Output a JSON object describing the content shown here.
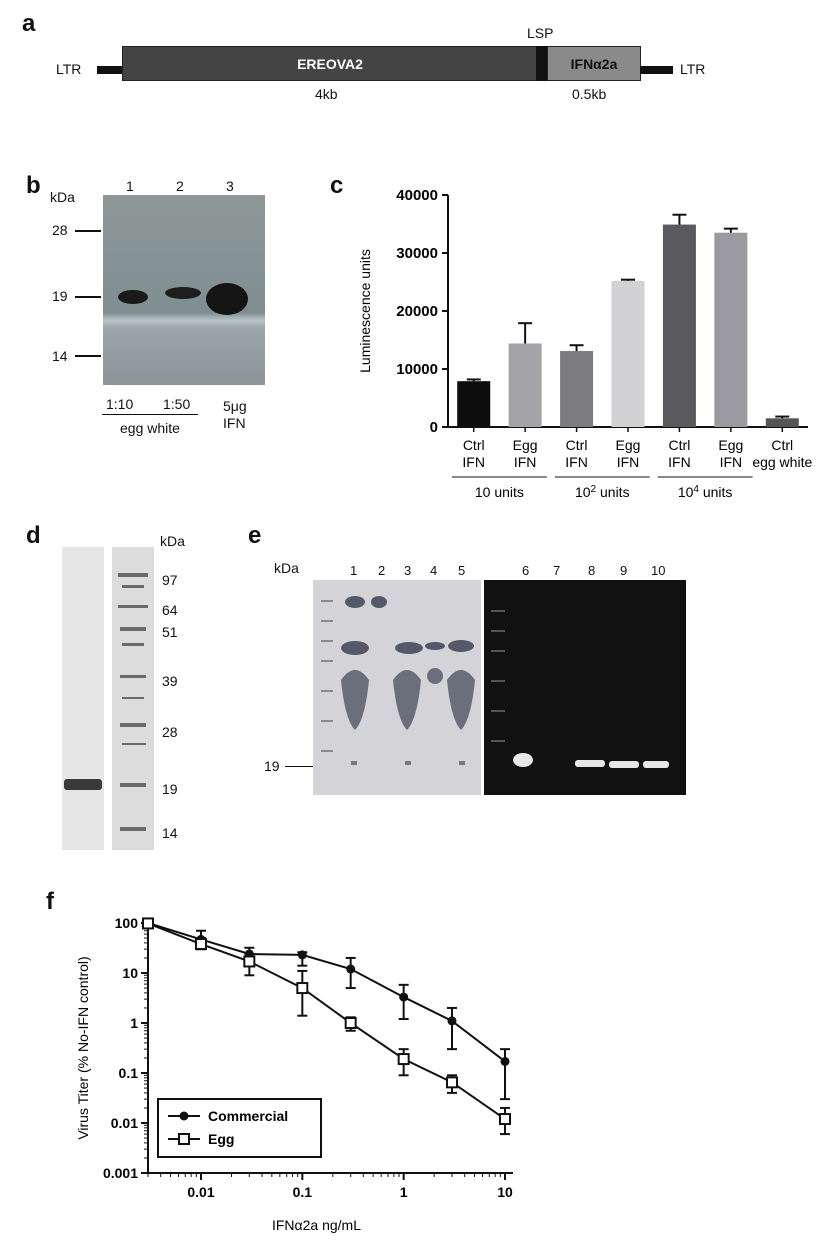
{
  "panels": {
    "a": {
      "label": "a",
      "ltr_left": "LTR",
      "ltr_right": "LTR",
      "lsp": "LSP",
      "ereova": "EREOVA2",
      "ifn": "IFNα2a",
      "size_ereova": "4kb",
      "size_ifn": "0.5kb",
      "colors": {
        "ereova": "#444444",
        "ifn": "#8a8a8a",
        "lsp": "#111111"
      }
    },
    "b": {
      "label": "b",
      "kda": "kDa",
      "lanes": [
        "1",
        "2",
        "3"
      ],
      "markers": [
        "28",
        "19",
        "14"
      ],
      "lane_labels": [
        "1:10",
        "1:50",
        "5μg"
      ],
      "lane3_sub": "IFN",
      "group": "egg white"
    },
    "d": {
      "label": "d",
      "kda": "kDa",
      "markers": [
        "97",
        "64",
        "51",
        "39",
        "28",
        "19",
        "14"
      ]
    },
    "e": {
      "label": "e",
      "kda": "kDa",
      "lanes": [
        "1",
        "2",
        "3",
        "4",
        "5",
        "6",
        "7",
        "8",
        "9",
        "10"
      ],
      "marker": "19"
    }
  },
  "chart_data": [
    {
      "panel": "c",
      "type": "bar",
      "ylabel": "Luminescence units",
      "ylim": [
        0,
        40000
      ],
      "yticks": [
        "0",
        "10000",
        "20000",
        "30000",
        "40000"
      ],
      "categories": [
        [
          "Ctrl",
          "IFN"
        ],
        [
          "Egg",
          "IFN"
        ],
        [
          "Ctrl",
          "IFN"
        ],
        [
          "Egg",
          "IFN"
        ],
        [
          "Ctrl",
          "IFN"
        ],
        [
          "Egg",
          "IFN"
        ],
        [
          "Ctrl",
          "egg white"
        ]
      ],
      "values": [
        7900,
        14400,
        13100,
        25200,
        34900,
        33500,
        1500
      ],
      "errors": [
        300,
        3500,
        1000,
        200,
        1700,
        700,
        300
      ],
      "colors": [
        "#0d0d0d",
        "#a3a3a8",
        "#7c7c80",
        "#d2d2d4",
        "#5a5a5e",
        "#9a9aa0",
        "#555555"
      ],
      "groups": [
        {
          "base": "10",
          "exp": "",
          "unit": "units"
        },
        {
          "base": "10",
          "exp": "2",
          "unit": "units"
        },
        {
          "base": "10",
          "exp": "4",
          "unit": "units"
        }
      ]
    },
    {
      "panel": "f",
      "type": "line",
      "scale": "log-log",
      "xlabel": "IFNα2a ng/mL",
      "ylabel": "Virus Titer (% No-IFN control)",
      "xticks": [
        "0.01",
        "0.1",
        "1",
        "10"
      ],
      "yticks": [
        "100",
        "10",
        "1",
        "0.1",
        "0.01",
        "0.001"
      ],
      "xlim": [
        0.003,
        10
      ],
      "ylim": [
        0.001,
        100
      ],
      "legend_position": "bottom-left",
      "series": [
        {
          "name": "Commercial",
          "marker": "filled-circle",
          "x": [
            0.003,
            0.01,
            0.03,
            0.1,
            0.3,
            1,
            3,
            10
          ],
          "y": [
            100,
            47,
            24,
            23,
            12,
            3.3,
            1.1,
            0.17
          ],
          "err_lo": [
            85,
            30,
            16,
            14,
            5,
            1.2,
            0.3,
            0.03
          ],
          "err_hi": [
            110,
            70,
            32,
            26,
            20,
            5.8,
            2.0,
            0.3
          ]
        },
        {
          "name": "Egg",
          "marker": "open-square",
          "x": [
            0.003,
            0.01,
            0.03,
            0.1,
            0.3,
            1,
            3,
            10
          ],
          "y": [
            98,
            38,
            17,
            5,
            1.0,
            0.19,
            0.065,
            0.012
          ],
          "err_lo": [
            85,
            30,
            9,
            1.4,
            0.7,
            0.09,
            0.04,
            0.006
          ],
          "err_hi": [
            110,
            50,
            24,
            11,
            1.3,
            0.3,
            0.09,
            0.02
          ]
        }
      ]
    }
  ]
}
